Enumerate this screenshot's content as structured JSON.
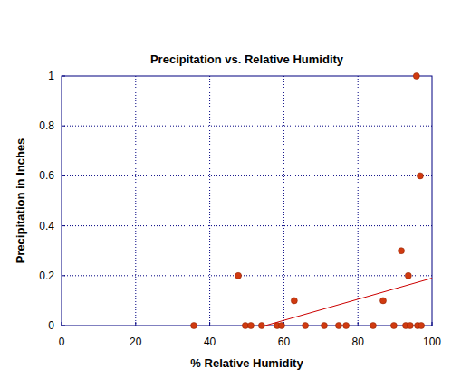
{
  "chart_data": {
    "type": "scatter",
    "title": "Precipitation vs. Relative Humidity",
    "x_label": "% Relative Humidity",
    "y_label": "Precipitation in Inches",
    "xlim": [
      0,
      100
    ],
    "ylim": [
      0,
      1
    ],
    "xticks": [
      0,
      20,
      40,
      60,
      80,
      100
    ],
    "yticks": [
      0,
      0.2,
      0.4,
      0.6,
      0.8,
      1
    ],
    "grid": true,
    "series": [
      {
        "type": "scatter",
        "color": "#d03a10",
        "marker": "circle",
        "x": [
          35.7,
          47.7,
          49.6,
          51.1,
          54,
          58.2,
          59.4,
          62.8,
          65.8,
          70.9,
          74.8,
          76.8,
          84.1,
          86.8,
          89.7,
          91.7,
          92.9,
          93.6,
          94.1,
          95.8,
          96.1,
          96.8,
          97.1
        ],
        "values": [
          0,
          0.2,
          0,
          0,
          0,
          0,
          0,
          0.1,
          0,
          0,
          0,
          0,
          0,
          0.1,
          0,
          0.3,
          0,
          0.2,
          0,
          1,
          0,
          0.6,
          0
        ]
      },
      {
        "type": "line",
        "color": "#cc0000",
        "line_style": "solid",
        "x": [
          55,
          100
        ],
        "values": [
          0,
          0.19
        ]
      }
    ]
  }
}
